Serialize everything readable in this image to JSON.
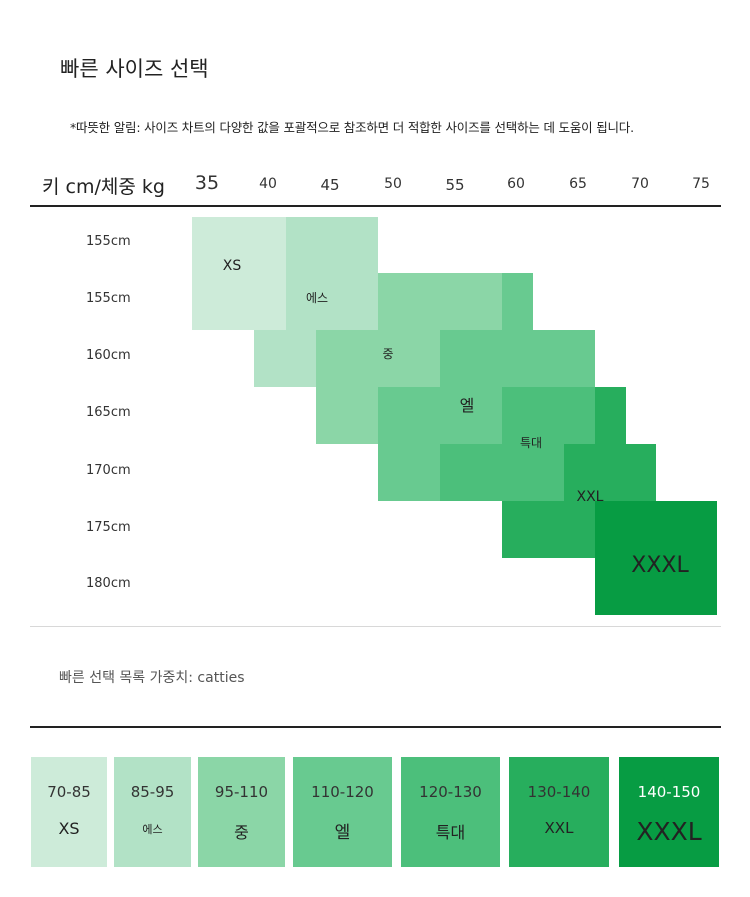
{
  "title": "빠른 사이즈 선택",
  "notice": "*따뜻한 알림: 사이즈 차트의 다양한 값을 포괄적으로 참조하면 더 적합한 사이즈를 선택하는 데 도움이 됩니다.",
  "header_label": "키 cm/체중 kg",
  "weights": [
    "35",
    "40",
    "45",
    "50",
    "55",
    "60",
    "65",
    "70",
    "75"
  ],
  "heights": [
    "155cm",
    "155cm",
    "160cm",
    "165cm",
    "170cm",
    "175cm",
    "180cm"
  ],
  "size_labels": [
    "XS",
    "에스",
    "중",
    "엘",
    "특대",
    "XXL",
    "XXXL"
  ],
  "quick_label": "빠른 선택 목록 가중치: catties",
  "quick_list": [
    {
      "range": "70-85",
      "size": "XS"
    },
    {
      "range": "85-95",
      "size": "에스"
    },
    {
      "range": "95-110",
      "size": "중"
    },
    {
      "range": "110-120",
      "size": "엘"
    },
    {
      "range": "120-130",
      "size": "특대"
    },
    {
      "range": "130-140",
      "size": "XXL"
    },
    {
      "range": "140-150",
      "size": "XXXL"
    }
  ],
  "colors": {
    "xs": "#cdebd9",
    "s": "#b2e2c6",
    "m": "#8bd6a7",
    "l": "#68ca90",
    "xl": "#4cbf7b",
    "xxl": "#27ae5d",
    "xxxl": "#079c43"
  }
}
